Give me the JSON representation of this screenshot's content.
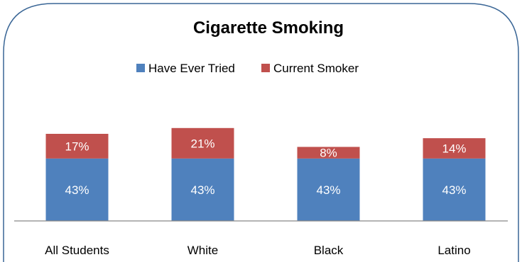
{
  "chart_data": {
    "type": "bar",
    "stacked": true,
    "title": "Cigarette Smoking",
    "categories": [
      "All Students",
      "White",
      "Black",
      "Latino"
    ],
    "series": [
      {
        "name": "Have Ever Tried",
        "values": [
          43,
          43,
          43,
          43
        ],
        "labels": [
          "43%",
          "43%",
          "43%",
          "43%"
        ],
        "color": "#4F81BD"
      },
      {
        "name": "Current Smoker",
        "values": [
          17,
          21,
          8,
          14
        ],
        "labels": [
          "17%",
          "21%",
          "8%",
          "14%"
        ],
        "color": "#C0504D"
      }
    ],
    "xlabel": "",
    "ylabel": "",
    "ylim": [
      0,
      110
    ],
    "grid": false,
    "legend_position": "top"
  }
}
